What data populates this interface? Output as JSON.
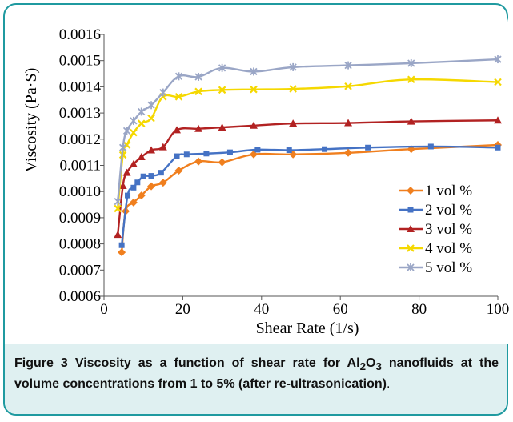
{
  "figure": {
    "label": "Figure 3",
    "text_parts": [
      "Viscosity as a function of shear rate for Al",
      "2",
      "O",
      "3",
      " nanofluids at the volume concentrations from 1 to 5% (after re-ultrasonication)"
    ],
    "tail": "."
  },
  "chart_data": {
    "type": "line",
    "title": "",
    "xlabel": "Shear Rate (1/s)",
    "ylabel": "Viscosity (Pa·S)",
    "xlim": [
      0,
      100
    ],
    "ylim": [
      0.0006,
      0.0016
    ],
    "xticks": [
      "0",
      "20",
      "40",
      "60",
      "80",
      "100"
    ],
    "yticks": [
      "0.0006",
      "0.0007",
      "0.0008",
      "0.0009",
      "0.0010",
      "0.0011",
      "0.0012",
      "0.0013",
      "0.0014",
      "0.0015",
      "0.0016"
    ],
    "grid": false,
    "legend_position": "right",
    "series": [
      {
        "name": "1 vol %",
        "color": "#f07f1e",
        "marker": "diamond",
        "points": [
          [
            4.5,
            0.000768
          ],
          [
            5.5,
            0.000925
          ],
          [
            7.5,
            0.000958
          ],
          [
            9.5,
            0.000985
          ],
          [
            12,
            0.00102
          ],
          [
            15,
            0.001034
          ],
          [
            19,
            0.00108
          ],
          [
            24,
            0.001115
          ],
          [
            30,
            0.001112
          ],
          [
            38,
            0.001142
          ],
          [
            48,
            0.001142
          ],
          [
            62,
            0.001148
          ],
          [
            78,
            0.001162
          ],
          [
            100,
            0.001178
          ]
        ]
      },
      {
        "name": "2 vol %",
        "color": "#4572c4",
        "marker": "square",
        "points": [
          [
            4.5,
            0.000795
          ],
          [
            6,
            0.000985
          ],
          [
            7.5,
            0.001015
          ],
          [
            8.5,
            0.001035
          ],
          [
            10,
            0.001058
          ],
          [
            12,
            0.00106
          ],
          [
            14.5,
            0.001072
          ],
          [
            18.5,
            0.001135
          ],
          [
            21,
            0.001142
          ],
          [
            26,
            0.001145
          ],
          [
            32,
            0.00115
          ],
          [
            39,
            0.00116
          ],
          [
            47,
            0.001158
          ],
          [
            56,
            0.001162
          ],
          [
            67,
            0.001168
          ],
          [
            83,
            0.001172
          ],
          [
            100,
            0.001168
          ]
        ]
      },
      {
        "name": "3 vol %",
        "color": "#b22222",
        "marker": "triangle",
        "points": [
          [
            3.5,
            0.000835
          ],
          [
            4.8,
            0.001022
          ],
          [
            5.8,
            0.001072
          ],
          [
            7.5,
            0.001105
          ],
          [
            9.5,
            0.001132
          ],
          [
            12,
            0.001158
          ],
          [
            15,
            0.00117
          ],
          [
            18.5,
            0.001235
          ],
          [
            24,
            0.00124
          ],
          [
            30,
            0.001245
          ],
          [
            38,
            0.001252
          ],
          [
            48,
            0.00126
          ],
          [
            62,
            0.001262
          ],
          [
            78,
            0.001268
          ],
          [
            100,
            0.001272
          ]
        ]
      },
      {
        "name": "4 vol %",
        "color": "#f5d800",
        "marker": "x",
        "points": [
          [
            3.5,
            0.000935
          ],
          [
            4.8,
            0.00114
          ],
          [
            5.8,
            0.001178
          ],
          [
            7.5,
            0.001225
          ],
          [
            9.5,
            0.00126
          ],
          [
            12,
            0.00128
          ],
          [
            15,
            0.001362
          ],
          [
            19,
            0.001362
          ],
          [
            24,
            0.001382
          ],
          [
            30,
            0.001388
          ],
          [
            38,
            0.00139
          ],
          [
            48,
            0.001392
          ],
          [
            62,
            0.001402
          ],
          [
            78,
            0.001428
          ],
          [
            100,
            0.001418
          ]
        ]
      },
      {
        "name": "5 vol %",
        "color": "#9aa6c6",
        "marker": "star",
        "points": [
          [
            3.5,
            0.000962
          ],
          [
            4.8,
            0.001168
          ],
          [
            5.8,
            0.001232
          ],
          [
            7.5,
            0.00127
          ],
          [
            9.5,
            0.001305
          ],
          [
            12,
            0.00133
          ],
          [
            15,
            0.001378
          ],
          [
            19,
            0.00144
          ],
          [
            24,
            0.001438
          ],
          [
            30,
            0.001472
          ],
          [
            38,
            0.001458
          ],
          [
            48,
            0.001475
          ],
          [
            62,
            0.001482
          ],
          [
            78,
            0.00149
          ],
          [
            100,
            0.001505
          ]
        ]
      }
    ]
  }
}
